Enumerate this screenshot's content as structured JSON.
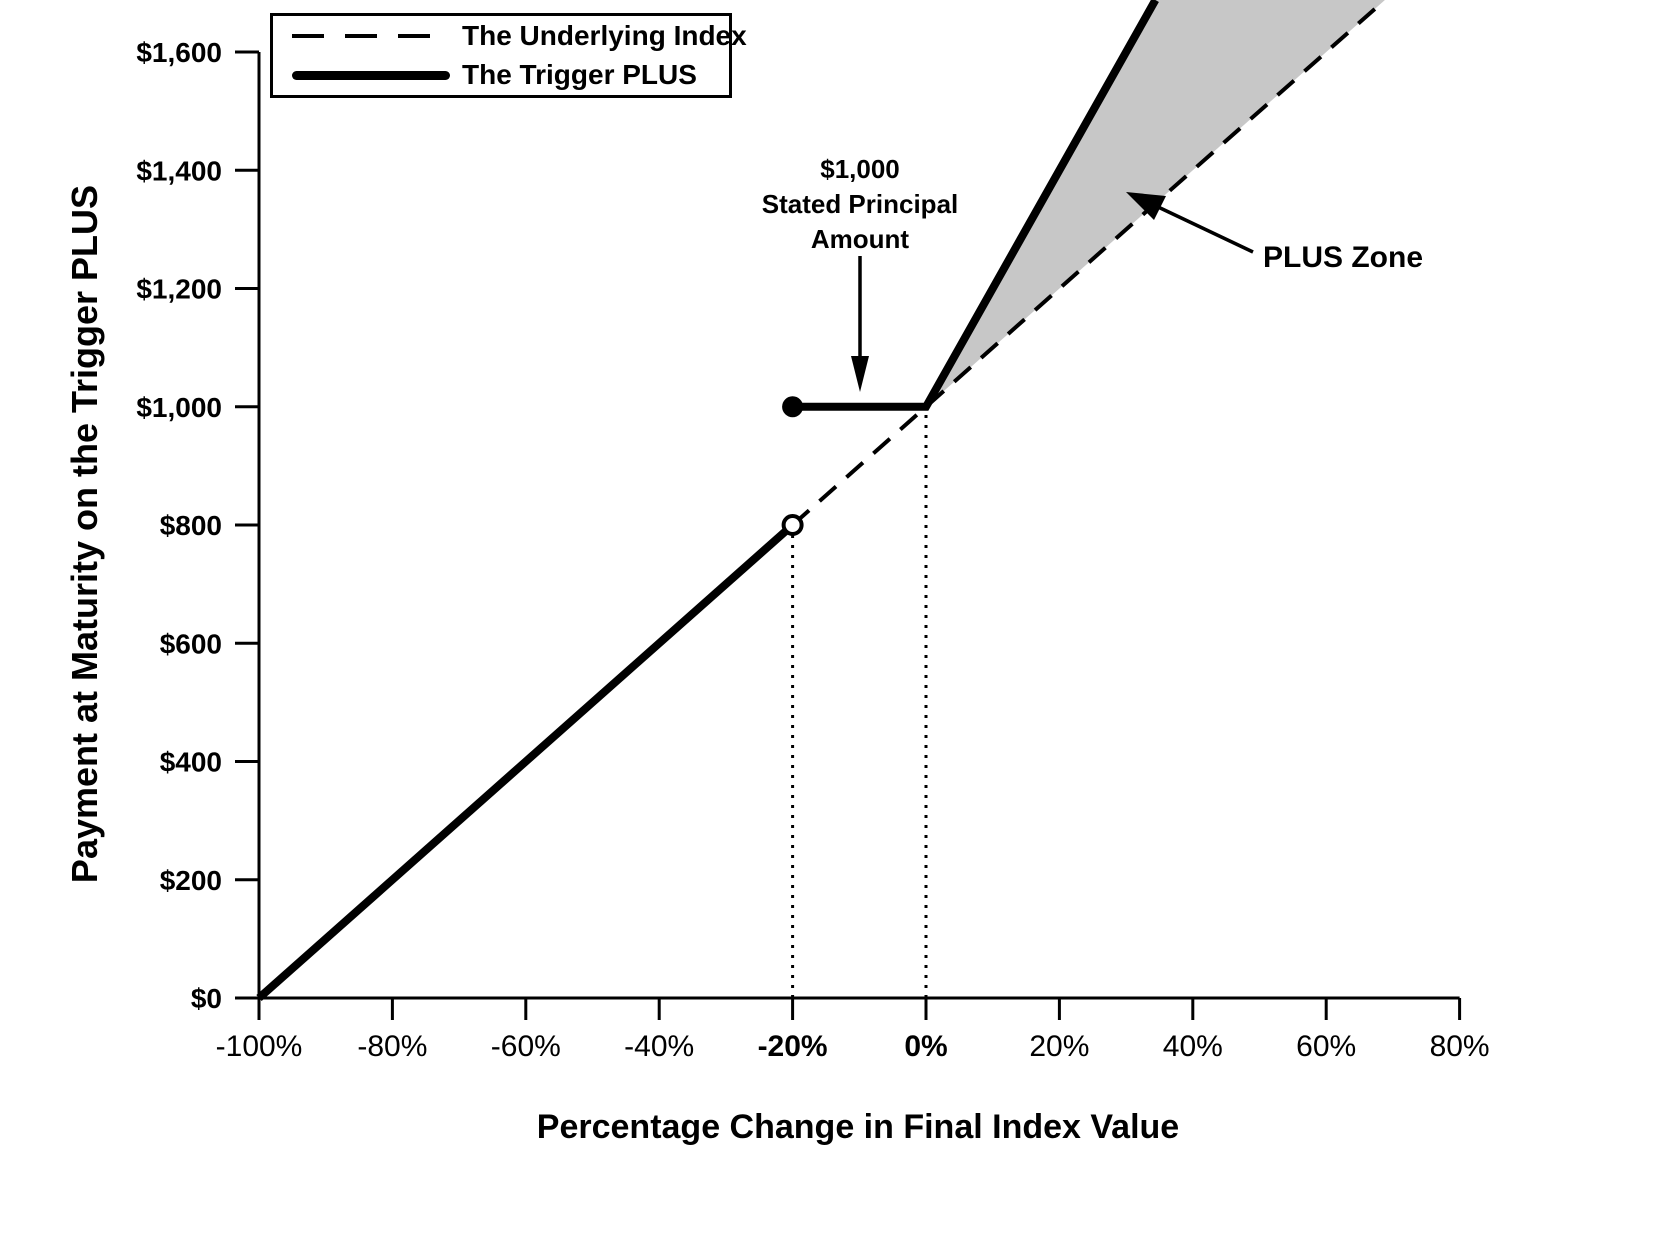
{
  "figure": {
    "background": "#ffffff",
    "line_color": "#000000",
    "plus_zone_fill": "#c7c7c7"
  },
  "chart_data": {
    "type": "line",
    "title": "",
    "xlabel": "Percentage Change in Final Index Value",
    "ylabel": "Payment at Maturity on the Trigger PLUS",
    "xlim": [
      -100,
      80
    ],
    "ylim": [
      0,
      1688
    ],
    "grid": false,
    "x_ticks": [
      {
        "value": -100,
        "label": "-100%",
        "bold": false
      },
      {
        "value": -80,
        "label": "-80%",
        "bold": false
      },
      {
        "value": -60,
        "label": "-60%",
        "bold": false
      },
      {
        "value": -40,
        "label": "-40%",
        "bold": false
      },
      {
        "value": -20,
        "label": "-20%",
        "bold": true
      },
      {
        "value": 0,
        "label": "0%",
        "bold": true
      },
      {
        "value": 20,
        "label": "20%",
        "bold": false
      },
      {
        "value": 40,
        "label": "40%",
        "bold": false
      },
      {
        "value": 60,
        "label": "60%",
        "bold": false
      },
      {
        "value": 80,
        "label": "80%",
        "bold": false
      }
    ],
    "y_ticks": [
      {
        "value": 0,
        "label": "$0"
      },
      {
        "value": 200,
        "label": "$200"
      },
      {
        "value": 400,
        "label": "$400"
      },
      {
        "value": 600,
        "label": "$600"
      },
      {
        "value": 800,
        "label": "$800"
      },
      {
        "value": 1000,
        "label": "$1,000"
      },
      {
        "value": 1200,
        "label": "$1,200"
      },
      {
        "value": 1400,
        "label": "$1,400"
      },
      {
        "value": 1600,
        "label": "$1,600"
      }
    ],
    "legend": {
      "position": "top-left",
      "entries": [
        {
          "label": "The Underlying Index",
          "style": "dashed"
        },
        {
          "label": "The Trigger PLUS",
          "style": "thick"
        }
      ]
    },
    "series": [
      {
        "name": "The Underlying Index",
        "style": "dashed",
        "points": [
          [
            -20,
            800
          ],
          [
            68.8,
            1688
          ]
        ]
      },
      {
        "name": "The Trigger PLUS",
        "style": "thick",
        "segments": [
          [
            [
              -100,
              0
            ],
            [
              -20,
              800
            ]
          ],
          [
            [
              -20,
              1000
            ],
            [
              0,
              1000
            ],
            [
              34.4,
              1688
            ]
          ]
        ],
        "open_point": [
          -20,
          800
        ],
        "closed_point": [
          -20,
          1000
        ]
      }
    ],
    "plus_zone_polygon": [
      [
        0,
        1000
      ],
      [
        34.4,
        1688
      ],
      [
        68.8,
        1688
      ]
    ],
    "guide_lines": [
      {
        "x": -20,
        "y_top": 800
      },
      {
        "x": 0,
        "y_top": 1000
      }
    ],
    "annotations": {
      "principal": {
        "lines": [
          "$1,000",
          "Stated Principal",
          "Amount"
        ]
      },
      "plus_zone_label": "PLUS Zone"
    }
  }
}
